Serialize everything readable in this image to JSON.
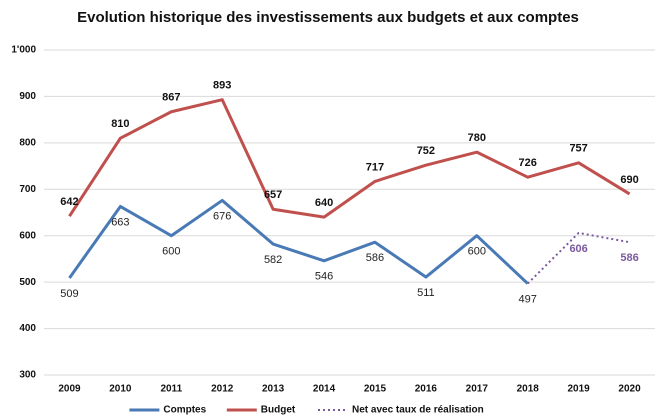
{
  "chart_data": {
    "type": "line",
    "title": "Evolution historique des investissements aux budgets et aux comptes",
    "categories": [
      "2009",
      "2010",
      "2011",
      "2012",
      "2013",
      "2014",
      "2015",
      "2016",
      "2017",
      "2018",
      "2019",
      "2020"
    ],
    "series": [
      {
        "name": "Comptes",
        "color": "#4a7ab5",
        "line_style": "solid",
        "label_position": "below",
        "label_bold": false,
        "label_color": "#222222",
        "values": [
          509,
          663,
          600,
          676,
          582,
          546,
          586,
          511,
          600,
          497,
          null,
          null
        ]
      },
      {
        "name": "Budget",
        "color": "#c0504d",
        "line_style": "solid",
        "label_position": "above",
        "label_bold": true,
        "label_color": "#111111",
        "values": [
          642,
          810,
          867,
          893,
          657,
          640,
          717,
          752,
          780,
          726,
          757,
          690
        ]
      },
      {
        "name": "Net avec taux de réalisation",
        "color": "#7a5a9e",
        "line_style": "dotted",
        "label_position": "below",
        "label_bold": true,
        "label_color": "#7a5a9e",
        "values": [
          null,
          null,
          null,
          null,
          null,
          null,
          null,
          null,
          null,
          497,
          606,
          586
        ]
      }
    ],
    "ylim": [
      300,
      1000
    ],
    "yticks": [
      300,
      400,
      500,
      600,
      700,
      800,
      900,
      {
        "value": 1000,
        "label": "1'000"
      }
    ],
    "grid": true,
    "legend": "bottom"
  }
}
